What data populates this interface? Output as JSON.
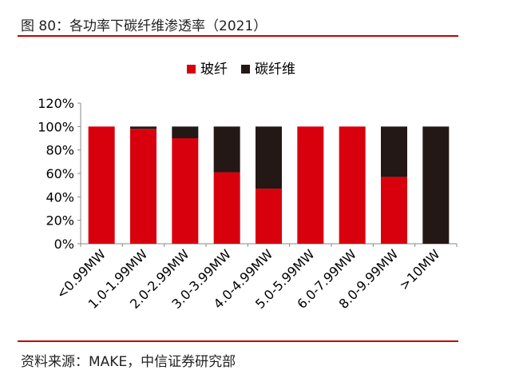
{
  "header": {
    "title": "图 80：各功率下碳纤维渗透率（2021）"
  },
  "footer": {
    "source": "资料来源：MAKE，中信证券研究部"
  },
  "chart_data": {
    "type": "bar",
    "stacked": true,
    "categories": [
      "<0.99MW",
      "1.0-1.99MW",
      "2.0-2.99MW",
      "3.0-3.99MW",
      "4.0-4.99MW",
      "5.0-5.99MW",
      "6.0-7.99MW",
      "8.0-9.99MW",
      ">10MW"
    ],
    "series": [
      {
        "name": "玻纤",
        "color": "#d9000d",
        "values": [
          100,
          98,
          90,
          61,
          47,
          100,
          100,
          57,
          0
        ]
      },
      {
        "name": "碳纤维",
        "color": "#231815",
        "values": [
          0,
          2,
          10,
          39,
          53,
          0,
          0,
          43,
          100
        ]
      }
    ],
    "ylim": [
      0,
      120
    ],
    "yticks": [
      "0%",
      "20%",
      "40%",
      "60%",
      "80%",
      "100%",
      "120%"
    ],
    "ytick_values": [
      0,
      20,
      40,
      60,
      80,
      100,
      120
    ],
    "legend_position": "top",
    "grid": false
  }
}
